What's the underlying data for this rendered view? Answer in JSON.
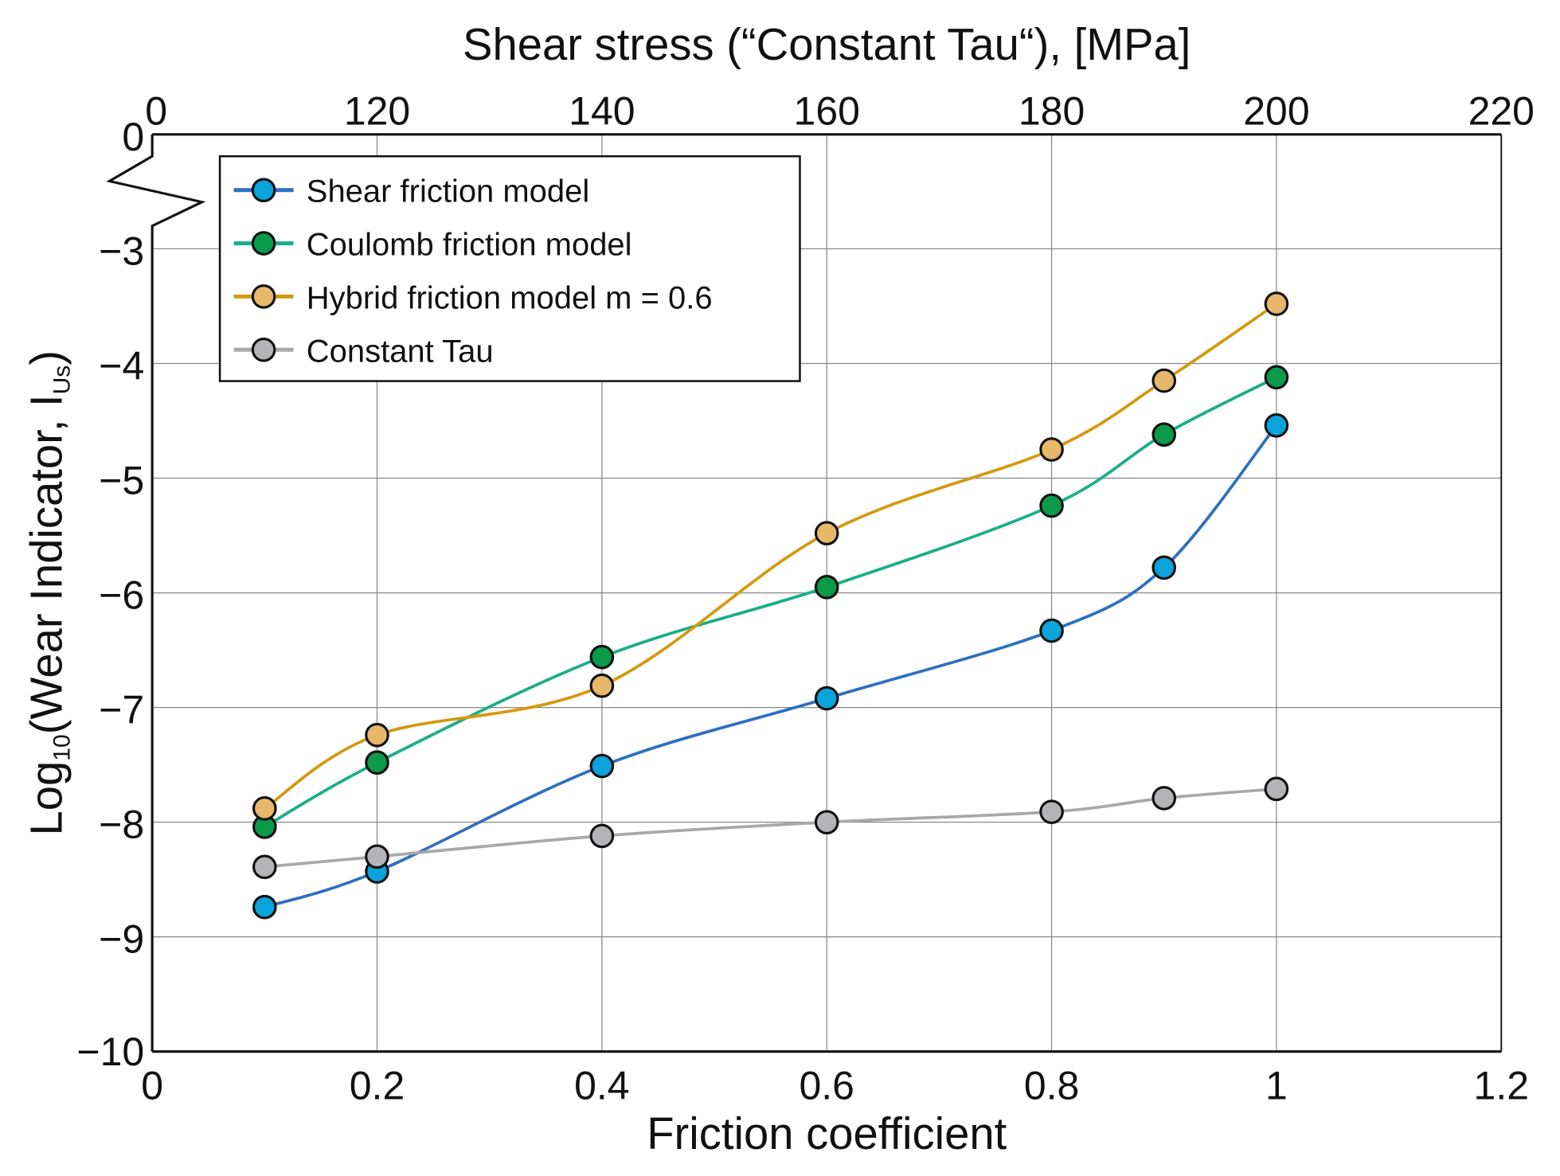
{
  "chart_data": {
    "type": "line",
    "title": "",
    "xlabel": "Friction coefficient",
    "ylabel": "Log10(Wear Indicator, IUs)",
    "ylabel_parts": {
      "main": "Log",
      "sub": "10",
      "rest": "(Wear Indicator, I",
      "sub2": "Us",
      "end": ")"
    },
    "x2label": "Shear stress (“Constant Tau“), [MPa]",
    "xlim": [
      0,
      1.2
    ],
    "ylim": [
      -10,
      0
    ],
    "y_axis_break": [
      0,
      -3
    ],
    "xticks": [
      0,
      0.2,
      0.4,
      0.6,
      0.8,
      1,
      1.2
    ],
    "xtick_labels": [
      "0",
      "0.2",
      "0.4",
      "0.6",
      "0.8",
      "1",
      "1.2"
    ],
    "x2ticks": [
      0,
      0.2,
      0.4,
      0.6,
      0.8,
      1,
      1.2
    ],
    "x2tick_labels": [
      "0",
      "120",
      "140",
      "160",
      "180",
      "200",
      "220"
    ],
    "yticks": [
      0,
      -3,
      -4,
      -5,
      -6,
      -7,
      -8,
      -9,
      -10
    ],
    "ytick_labels": [
      "0",
      "−3",
      "−4",
      "−5",
      "−6",
      "−7",
      "−8",
      "−9",
      "−10"
    ],
    "grid": true,
    "legend_position": "top-left",
    "x": [
      0.1,
      0.2,
      0.4,
      0.6,
      0.8,
      0.9,
      1.0
    ],
    "series": [
      {
        "name": "Shear friction model",
        "line": "#2e6fc0",
        "marker": "#0aa3dc",
        "values": [
          -8.74,
          -8.43,
          -7.51,
          -6.92,
          -6.33,
          -5.78,
          -4.54
        ]
      },
      {
        "name": "Coulomb friction model",
        "line": "#1aae86",
        "marker": "#0a9a4a",
        "values": [
          -8.04,
          -7.48,
          -6.56,
          -5.95,
          -5.24,
          -4.62,
          -4.12
        ]
      },
      {
        "name": "Hybrid friction model  m = 0.6",
        "line": "#d29a10",
        "marker": "#e8b86a",
        "values": [
          -7.88,
          -7.24,
          -6.81,
          -5.48,
          -4.75,
          -4.15,
          -3.48
        ]
      },
      {
        "name": "Constant Tau",
        "line": "#a8a8a8",
        "marker": "#b4b4b6",
        "values": [
          -8.39,
          -8.3,
          -8.12,
          -8.0,
          -7.91,
          -7.79,
          -7.71
        ]
      }
    ]
  }
}
